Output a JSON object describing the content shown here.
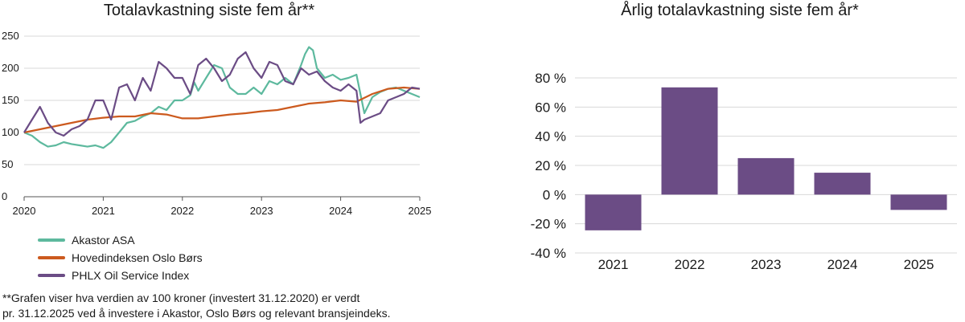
{
  "chart_data": [
    {
      "type": "line",
      "title": "Totalavkastning siste fem år**",
      "x_ticks": [
        "2020",
        "2021",
        "2022",
        "2023",
        "2024",
        "2025"
      ],
      "y_ticks": [
        "0",
        "50",
        "100",
        "150",
        "200",
        "250"
      ],
      "xlim": [
        2020,
        2025
      ],
      "ylim": [
        0,
        250
      ],
      "grid": true,
      "legend_position": "bottom-left",
      "series": [
        {
          "name": "Akastor ASA",
          "color": "#5db99e",
          "x": [
            2020.0,
            2020.1,
            2020.2,
            2020.3,
            2020.4,
            2020.5,
            2020.6,
            2020.7,
            2020.8,
            2020.9,
            2021.0,
            2021.1,
            2021.2,
            2021.3,
            2021.4,
            2021.5,
            2021.6,
            2021.7,
            2021.8,
            2021.9,
            2022.0,
            2022.1,
            2022.15,
            2022.2,
            2022.3,
            2022.4,
            2022.5,
            2022.6,
            2022.7,
            2022.8,
            2022.9,
            2023.0,
            2023.1,
            2023.2,
            2023.3,
            2023.4,
            2023.5,
            2023.55,
            2023.6,
            2023.65,
            2023.7,
            2023.8,
            2023.9,
            2024.0,
            2024.1,
            2024.2,
            2024.3,
            2024.4,
            2024.5,
            2024.6,
            2024.7,
            2024.8,
            2024.9,
            2025.0
          ],
          "y": [
            100,
            95,
            85,
            78,
            80,
            85,
            82,
            80,
            78,
            80,
            76,
            85,
            100,
            115,
            118,
            125,
            130,
            140,
            135,
            150,
            150,
            158,
            178,
            165,
            185,
            205,
            200,
            170,
            160,
            160,
            170,
            160,
            180,
            175,
            185,
            175,
            205,
            222,
            233,
            228,
            200,
            185,
            190,
            182,
            185,
            190,
            130,
            155,
            163,
            168,
            170,
            165,
            160,
            155
          ]
        },
        {
          "name": "Hovedindeksen Oslo Børs",
          "color": "#cc5a1e",
          "x": [
            2020.0,
            2020.2,
            2020.4,
            2020.6,
            2020.8,
            2021.0,
            2021.2,
            2021.4,
            2021.6,
            2021.8,
            2022.0,
            2022.2,
            2022.4,
            2022.6,
            2022.8,
            2023.0,
            2023.2,
            2023.4,
            2023.6,
            2023.8,
            2024.0,
            2024.2,
            2024.4,
            2024.6,
            2024.8,
            2025.0
          ],
          "y": [
            100,
            105,
            110,
            115,
            120,
            123,
            125,
            125,
            130,
            128,
            122,
            122,
            125,
            128,
            130,
            133,
            135,
            140,
            145,
            147,
            150,
            148,
            160,
            168,
            170,
            168
          ]
        },
        {
          "name": "PHLX Oil Service Index",
          "color": "#6b4c85",
          "x": [
            2020.0,
            2020.1,
            2020.2,
            2020.3,
            2020.4,
            2020.5,
            2020.6,
            2020.7,
            2020.8,
            2020.9,
            2021.0,
            2021.1,
            2021.2,
            2021.3,
            2021.4,
            2021.5,
            2021.6,
            2021.7,
            2021.8,
            2021.9,
            2022.0,
            2022.1,
            2022.2,
            2022.3,
            2022.4,
            2022.5,
            2022.6,
            2022.7,
            2022.8,
            2022.9,
            2023.0,
            2023.1,
            2023.2,
            2023.3,
            2023.4,
            2023.5,
            2023.6,
            2023.7,
            2023.8,
            2023.9,
            2024.0,
            2024.1,
            2024.2,
            2024.25,
            2024.3,
            2024.4,
            2024.5,
            2024.6,
            2024.7,
            2024.8,
            2024.9,
            2025.0
          ],
          "y": [
            100,
            120,
            140,
            115,
            100,
            95,
            105,
            110,
            120,
            150,
            150,
            120,
            170,
            175,
            150,
            185,
            165,
            210,
            200,
            185,
            185,
            160,
            205,
            215,
            200,
            180,
            190,
            215,
            225,
            200,
            185,
            210,
            205,
            180,
            175,
            200,
            190,
            195,
            180,
            170,
            165,
            175,
            165,
            115,
            120,
            125,
            130,
            150,
            155,
            160,
            170,
            168
          ]
        }
      ]
    },
    {
      "type": "bar",
      "title": "Årlig totalavkastning siste fem år*",
      "categories": [
        "2021",
        "2022",
        "2023",
        "2024",
        "2025"
      ],
      "values": [
        -24.5,
        73.5,
        25,
        15,
        -10.5
      ],
      "y_ticks": [
        "-40 %",
        "-20 %",
        "0 %",
        "20 %",
        "40 %",
        "60 %",
        "80 %"
      ],
      "ylim": [
        -40,
        80
      ],
      "color": "#6b4c85",
      "grid": true
    }
  ],
  "footnote": {
    "line1": "**Grafen viser hva verdien av 100 kroner (investert 31.12.2020) er verdt",
    "line2": "pr. 31.12.2025 ved å investere i Akastor, Oslo Børs og relevant bransjeindeks."
  }
}
